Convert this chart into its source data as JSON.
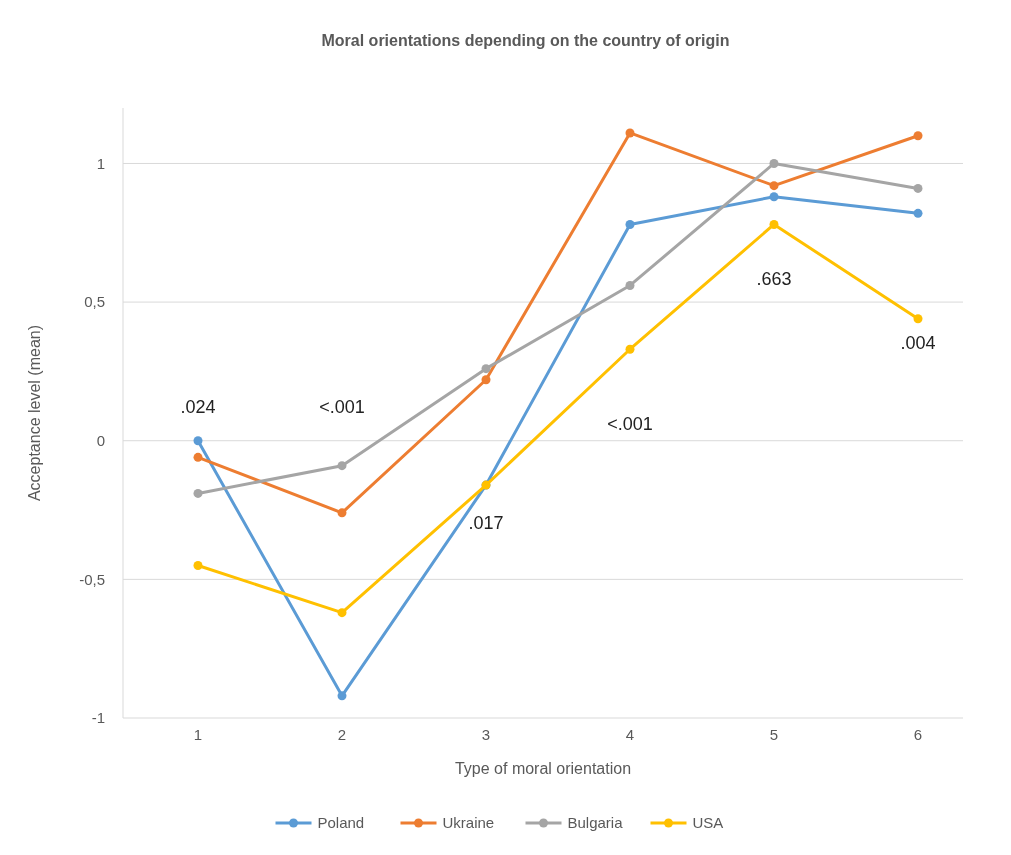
{
  "chart_data": {
    "type": "line",
    "title": "Moral orientations depending on the country of origin",
    "xlabel": "Type of moral orientation",
    "ylabel": "Acceptance level (mean)",
    "categories": [
      "1",
      "2",
      "3",
      "4",
      "5",
      "6"
    ],
    "series": [
      {
        "name": "Poland",
        "color": "#5b9bd5",
        "values": [
          0.0,
          -0.92,
          -0.16,
          0.78,
          0.88,
          0.82
        ]
      },
      {
        "name": "Ukraine",
        "color": "#ed7d31",
        "values": [
          -0.06,
          -0.26,
          0.22,
          1.11,
          0.92,
          1.1
        ]
      },
      {
        "name": "Bulgaria",
        "color": "#a5a5a5",
        "values": [
          -0.19,
          -0.09,
          0.26,
          0.56,
          1.0,
          0.91
        ]
      },
      {
        "name": "USA",
        "color": "#ffc000",
        "values": [
          -0.45,
          -0.62,
          -0.16,
          0.33,
          0.78,
          0.44
        ]
      }
    ],
    "ylim": [
      -1,
      1.2
    ],
    "yticks": [
      {
        "value": -1,
        "label": "-1"
      },
      {
        "value": -0.5,
        "label": "-0,5"
      },
      {
        "value": 0,
        "label": "0"
      },
      {
        "value": 0.5,
        "label": "0,5"
      },
      {
        "value": 1,
        "label": "1"
      }
    ],
    "grid": "y",
    "legend": "bottom",
    "marker": "circle",
    "line_style": "solid",
    "annotations": [
      ".024",
      "<.001",
      ".017",
      "<.001",
      ".663",
      ".004"
    ]
  }
}
